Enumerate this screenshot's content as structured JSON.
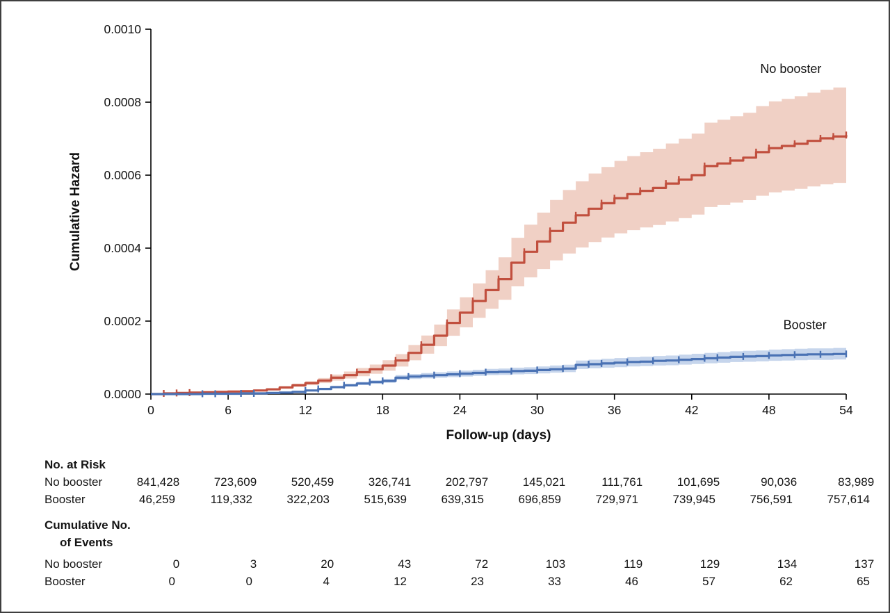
{
  "chart_data": {
    "type": "line",
    "subtype": "step-cumulative-hazard",
    "title": "",
    "xlabel": "Follow-up (days)",
    "ylabel": "Cumulative Hazard",
    "xlim": [
      0,
      54
    ],
    "ylim": [
      0,
      0.001
    ],
    "xticks": [
      0,
      6,
      12,
      18,
      24,
      30,
      36,
      42,
      48,
      54
    ],
    "yticks": [
      0,
      0.0002,
      0.0004,
      0.0006,
      0.0008,
      0.001
    ],
    "ytick_labels": [
      "0.0000",
      "0.0002",
      "0.0004",
      "0.0006",
      "0.0008",
      "0.0010"
    ],
    "grid": false,
    "legend_position": "inline-labels",
    "colors": {
      "no_booster_line": "#c14f3e",
      "no_booster_band": "#f0d0c5",
      "booster_line": "#4a72b4",
      "booster_band": "#c6d5ec",
      "axis": "#000000",
      "text": "#111111"
    },
    "series": [
      {
        "name": "No booster",
        "color": "#c14f3e",
        "band_color": "#f0d0c5",
        "band_lower_factor": 0.82,
        "band_upper_factor": 1.19,
        "label_x": 49.7,
        "label_y": 0.00088,
        "x": [
          0,
          1,
          2,
          3,
          4,
          5,
          6,
          7,
          8,
          9,
          10,
          11,
          12,
          13,
          14,
          15,
          16,
          17,
          18,
          19,
          20,
          21,
          22,
          23,
          24,
          25,
          26,
          27,
          28,
          29,
          30,
          31,
          32,
          33,
          34,
          35,
          36,
          37,
          38,
          39,
          40,
          41,
          42,
          43,
          44,
          45,
          46,
          47,
          48,
          49,
          50,
          51,
          52,
          53,
          54
        ],
        "y": [
          0,
          2e-06,
          3e-06,
          4e-06,
          5e-06,
          6e-06,
          7e-06,
          8e-06,
          1e-05,
          1.3e-05,
          1.8e-05,
          2.4e-05,
          3e-05,
          3.7e-05,
          4.5e-05,
          5.2e-05,
          6e-05,
          6.8e-05,
          7.8e-05,
          9.2e-05,
          0.000113,
          0.000135,
          0.00016,
          0.000195,
          0.000223,
          0.000255,
          0.000285,
          0.000315,
          0.00036,
          0.00039,
          0.000418,
          0.000447,
          0.00047,
          0.00049,
          0.000508,
          0.000523,
          0.000537,
          0.000548,
          0.000557,
          0.000565,
          0.000577,
          0.000588,
          0.0006,
          0.000625,
          0.000632,
          0.00064,
          0.000648,
          0.000663,
          0.000674,
          0.00068,
          0.000686,
          0.000694,
          0.000701,
          0.000706,
          0.00071
        ],
        "censor_x": [
          1,
          2,
          3,
          14,
          16,
          19,
          21,
          23,
          25,
          27,
          29,
          31,
          33,
          35,
          36,
          38,
          40,
          41,
          43,
          45,
          47,
          48,
          50,
          52,
          53,
          54
        ]
      },
      {
        "name": "Booster",
        "color": "#4a72b4",
        "band_color": "#c6d5ec",
        "band_lower_factor": 0.86,
        "band_upper_factor": 1.15,
        "label_x": 50.8,
        "label_y": 0.000178,
        "x": [
          0,
          1,
          2,
          3,
          4,
          5,
          6,
          7,
          8,
          9,
          10,
          11,
          12,
          13,
          14,
          15,
          16,
          17,
          18,
          19,
          20,
          21,
          22,
          23,
          24,
          25,
          26,
          27,
          28,
          29,
          30,
          31,
          32,
          33,
          34,
          35,
          36,
          37,
          38,
          39,
          40,
          41,
          42,
          43,
          44,
          45,
          46,
          47,
          48,
          49,
          50,
          51,
          52,
          53,
          54
        ],
        "y": [
          0,
          0,
          0,
          0,
          1e-06,
          1e-06,
          1e-06,
          2e-06,
          2e-06,
          3e-06,
          4e-06,
          6e-06,
          1e-05,
          1.4e-05,
          1.9e-05,
          2.4e-05,
          2.9e-05,
          3.3e-05,
          3.6e-05,
          4.5e-05,
          4.8e-05,
          5e-05,
          5.2e-05,
          5.4e-05,
          5.6e-05,
          5.8e-05,
          6e-05,
          6.1e-05,
          6.3e-05,
          6.4e-05,
          6.6e-05,
          6.8e-05,
          7e-05,
          8e-05,
          8.2e-05,
          8.4e-05,
          8.6e-05,
          8.8e-05,
          8.9e-05,
          9.1e-05,
          9.2e-05,
          9.4e-05,
          9.6e-05,
          9.8e-05,
          0.0001,
          0.000102,
          0.000103,
          0.000104,
          0.000106,
          0.000107,
          0.000108,
          0.000109,
          0.000109,
          0.00011,
          0.00011
        ],
        "censor_x": [
          4,
          5,
          7,
          8,
          12,
          13,
          15,
          17,
          18,
          20,
          22,
          24,
          26,
          28,
          30,
          32,
          34,
          35,
          37,
          39,
          41,
          43,
          44,
          46,
          48,
          50,
          52,
          54
        ]
      }
    ]
  },
  "tables": {
    "risk": {
      "title": "No. at Risk",
      "rows": [
        {
          "label": "No booster",
          "values": [
            "841,428",
            "723,609",
            "520,459",
            "326,741",
            "202,797",
            "145,021",
            "111,761",
            "101,695",
            "90,036",
            "83,989"
          ]
        },
        {
          "label": "Booster",
          "values": [
            "46,259",
            "119,332",
            "322,203",
            "515,639",
            "639,315",
            "696,859",
            "729,971",
            "739,945",
            "756,591",
            "757,614"
          ]
        }
      ]
    },
    "events": {
      "title_line1": "Cumulative No.",
      "title_line2": "of Events",
      "rows": [
        {
          "label": "No booster",
          "values": [
            "0",
            "3",
            "20",
            "43",
            "72",
            "103",
            "119",
            "129",
            "134",
            "137"
          ]
        },
        {
          "label": "Booster",
          "values": [
            "0",
            "0",
            "4",
            "12",
            "23",
            "33",
            "46",
            "57",
            "62",
            "65"
          ]
        }
      ]
    }
  }
}
